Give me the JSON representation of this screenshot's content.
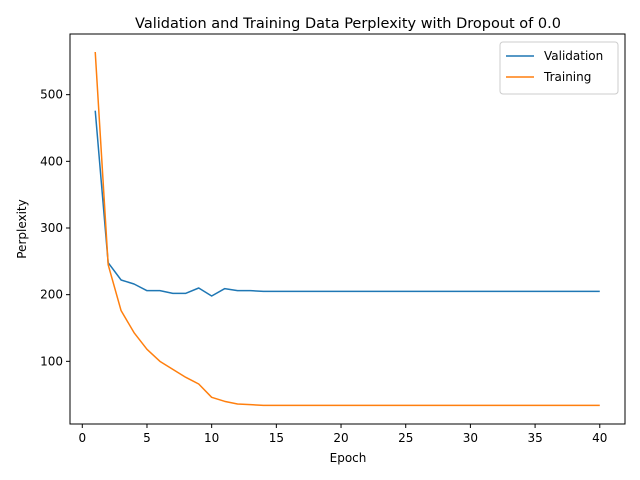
{
  "chart_data": {
    "type": "line",
    "title": "Validation and Training Data Perplexity with Dropout of 0.0",
    "xlabel": "Epoch",
    "ylabel": "Perplexity",
    "xlim": [
      -0.95,
      41.95
    ],
    "ylim": [
      6,
      591
    ],
    "xticks": [
      0,
      5,
      10,
      15,
      20,
      25,
      30,
      35,
      40
    ],
    "yticks": [
      100,
      200,
      300,
      400,
      500
    ],
    "grid": false,
    "legend": "top-right",
    "x": [
      1,
      2,
      3,
      4,
      5,
      6,
      7,
      8,
      9,
      10,
      11,
      12,
      13,
      14,
      15,
      16,
      17,
      18,
      19,
      20,
      21,
      22,
      23,
      24,
      25,
      26,
      27,
      28,
      29,
      30,
      31,
      32,
      33,
      34,
      35,
      36,
      37,
      38,
      39,
      40
    ],
    "series": [
      {
        "name": "Validation",
        "color": "#1f77b4",
        "values": [
          476,
          248,
          222,
          216,
          206,
          206,
          202,
          202,
          210,
          198,
          209,
          206,
          206,
          205,
          205,
          205,
          205,
          205,
          205,
          205,
          205,
          205,
          205,
          205,
          205,
          205,
          205,
          205,
          205,
          205,
          205,
          205,
          205,
          205,
          205,
          205,
          205,
          205,
          205,
          205
        ]
      },
      {
        "name": "Training",
        "color": "#ff7f0e",
        "values": [
          564,
          245,
          176,
          143,
          118,
          100,
          88,
          76,
          66,
          46,
          40,
          36,
          35,
          34,
          34,
          34,
          34,
          34,
          34,
          34,
          34,
          34,
          34,
          34,
          34,
          34,
          34,
          34,
          34,
          34,
          34,
          34,
          34,
          34,
          34,
          34,
          34,
          34,
          34,
          34
        ]
      }
    ]
  }
}
